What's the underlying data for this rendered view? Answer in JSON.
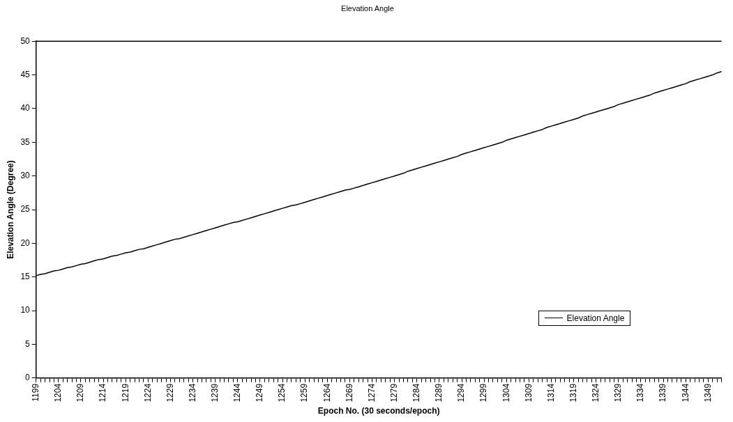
{
  "chart_data": {
    "type": "line",
    "title": "Elevation Angle",
    "xlabel": "Epoch No. (30 seconds/epoch)",
    "ylabel": "Elevation Angle (Degree)",
    "categories": [
      "1199",
      null,
      null,
      null,
      null,
      "1204",
      null,
      null,
      null,
      null,
      "1209",
      null,
      null,
      null,
      null,
      "1214",
      null,
      null,
      null,
      null,
      "1219",
      null,
      null,
      null,
      null,
      "1224",
      null,
      null,
      null,
      null,
      "1229",
      null,
      null,
      null,
      null,
      "1234",
      null,
      null,
      null,
      null,
      "1239",
      null,
      null,
      null,
      null,
      "1244",
      null,
      null,
      null,
      null,
      "1249",
      null,
      null,
      null,
      null,
      "1254",
      null,
      null,
      null,
      null,
      "1259",
      null,
      null,
      null,
      null,
      "1264",
      null,
      null,
      null,
      null,
      "1269",
      null,
      null,
      null,
      null,
      "1274",
      null,
      null,
      null,
      null,
      "1279",
      null,
      null,
      null,
      null,
      "1284",
      null,
      null,
      null,
      null,
      "1289",
      null,
      null,
      null,
      null,
      "1294",
      null,
      null,
      null,
      null,
      "1299",
      null,
      null,
      null,
      null,
      "1304",
      null,
      null,
      null,
      null,
      "1309",
      null,
      null,
      null,
      null,
      "1314",
      null,
      null,
      null,
      null,
      "1319",
      null,
      null,
      null,
      null,
      "1324",
      null,
      null,
      null,
      null,
      "1329",
      null,
      null,
      null,
      null,
      "1334",
      null,
      null,
      null,
      null,
      "1339",
      null,
      null,
      null,
      null,
      "1344",
      null,
      null,
      null,
      null,
      "1349",
      null,
      null,
      null
    ],
    "series": [
      {
        "name": "Elevation Angle",
        "color": "#000000",
        "values": [
          15.2,
          15.4,
          15.5,
          15.7,
          15.9,
          16.0,
          16.2,
          16.4,
          16.5,
          16.7,
          16.9,
          17.0,
          17.2,
          17.4,
          17.6,
          17.7,
          17.9,
          18.1,
          18.2,
          18.4,
          18.6,
          18.7,
          18.9,
          19.1,
          19.2,
          19.4,
          19.6,
          19.8,
          20.0,
          20.2,
          20.4,
          20.6,
          20.7,
          20.9,
          21.1,
          21.3,
          21.5,
          21.7,
          21.9,
          22.1,
          22.3,
          22.5,
          22.7,
          22.9,
          23.1,
          23.2,
          23.4,
          23.6,
          23.8,
          24.0,
          24.2,
          24.4,
          24.6,
          24.8,
          25.0,
          25.2,
          25.4,
          25.6,
          25.7,
          25.9,
          26.1,
          26.3,
          26.5,
          26.7,
          26.9,
          27.1,
          27.3,
          27.5,
          27.7,
          27.9,
          28.0,
          28.2,
          28.4,
          28.6,
          28.8,
          29.0,
          29.2,
          29.4,
          29.6,
          29.8,
          30.0,
          30.2,
          30.4,
          30.7,
          30.9,
          31.1,
          31.3,
          31.5,
          31.7,
          31.9,
          32.1,
          32.3,
          32.5,
          32.7,
          32.9,
          33.2,
          33.4,
          33.6,
          33.8,
          34.0,
          34.2,
          34.4,
          34.6,
          34.8,
          35.0,
          35.3,
          35.5,
          35.7,
          35.9,
          36.1,
          36.3,
          36.5,
          36.7,
          36.9,
          37.2,
          37.4,
          37.6,
          37.8,
          38.0,
          38.2,
          38.4,
          38.6,
          38.9,
          39.1,
          39.3,
          39.5,
          39.7,
          39.9,
          40.1,
          40.3,
          40.6,
          40.8,
          41.0,
          41.2,
          41.4,
          41.6,
          41.8,
          42.0,
          42.3,
          42.5,
          42.7,
          42.9,
          43.1,
          43.3,
          43.5,
          43.7,
          44.0,
          44.2,
          44.4,
          44.6,
          44.8,
          45.0,
          45.3,
          45.5
        ]
      }
    ],
    "ylim": [
      0,
      50
    ],
    "yticks": [
      0,
      5,
      10,
      15,
      20,
      25,
      30,
      35,
      40,
      45,
      50
    ],
    "grid": false,
    "legend": "bottom right",
    "marker": "none",
    "line_style": "solid"
  }
}
